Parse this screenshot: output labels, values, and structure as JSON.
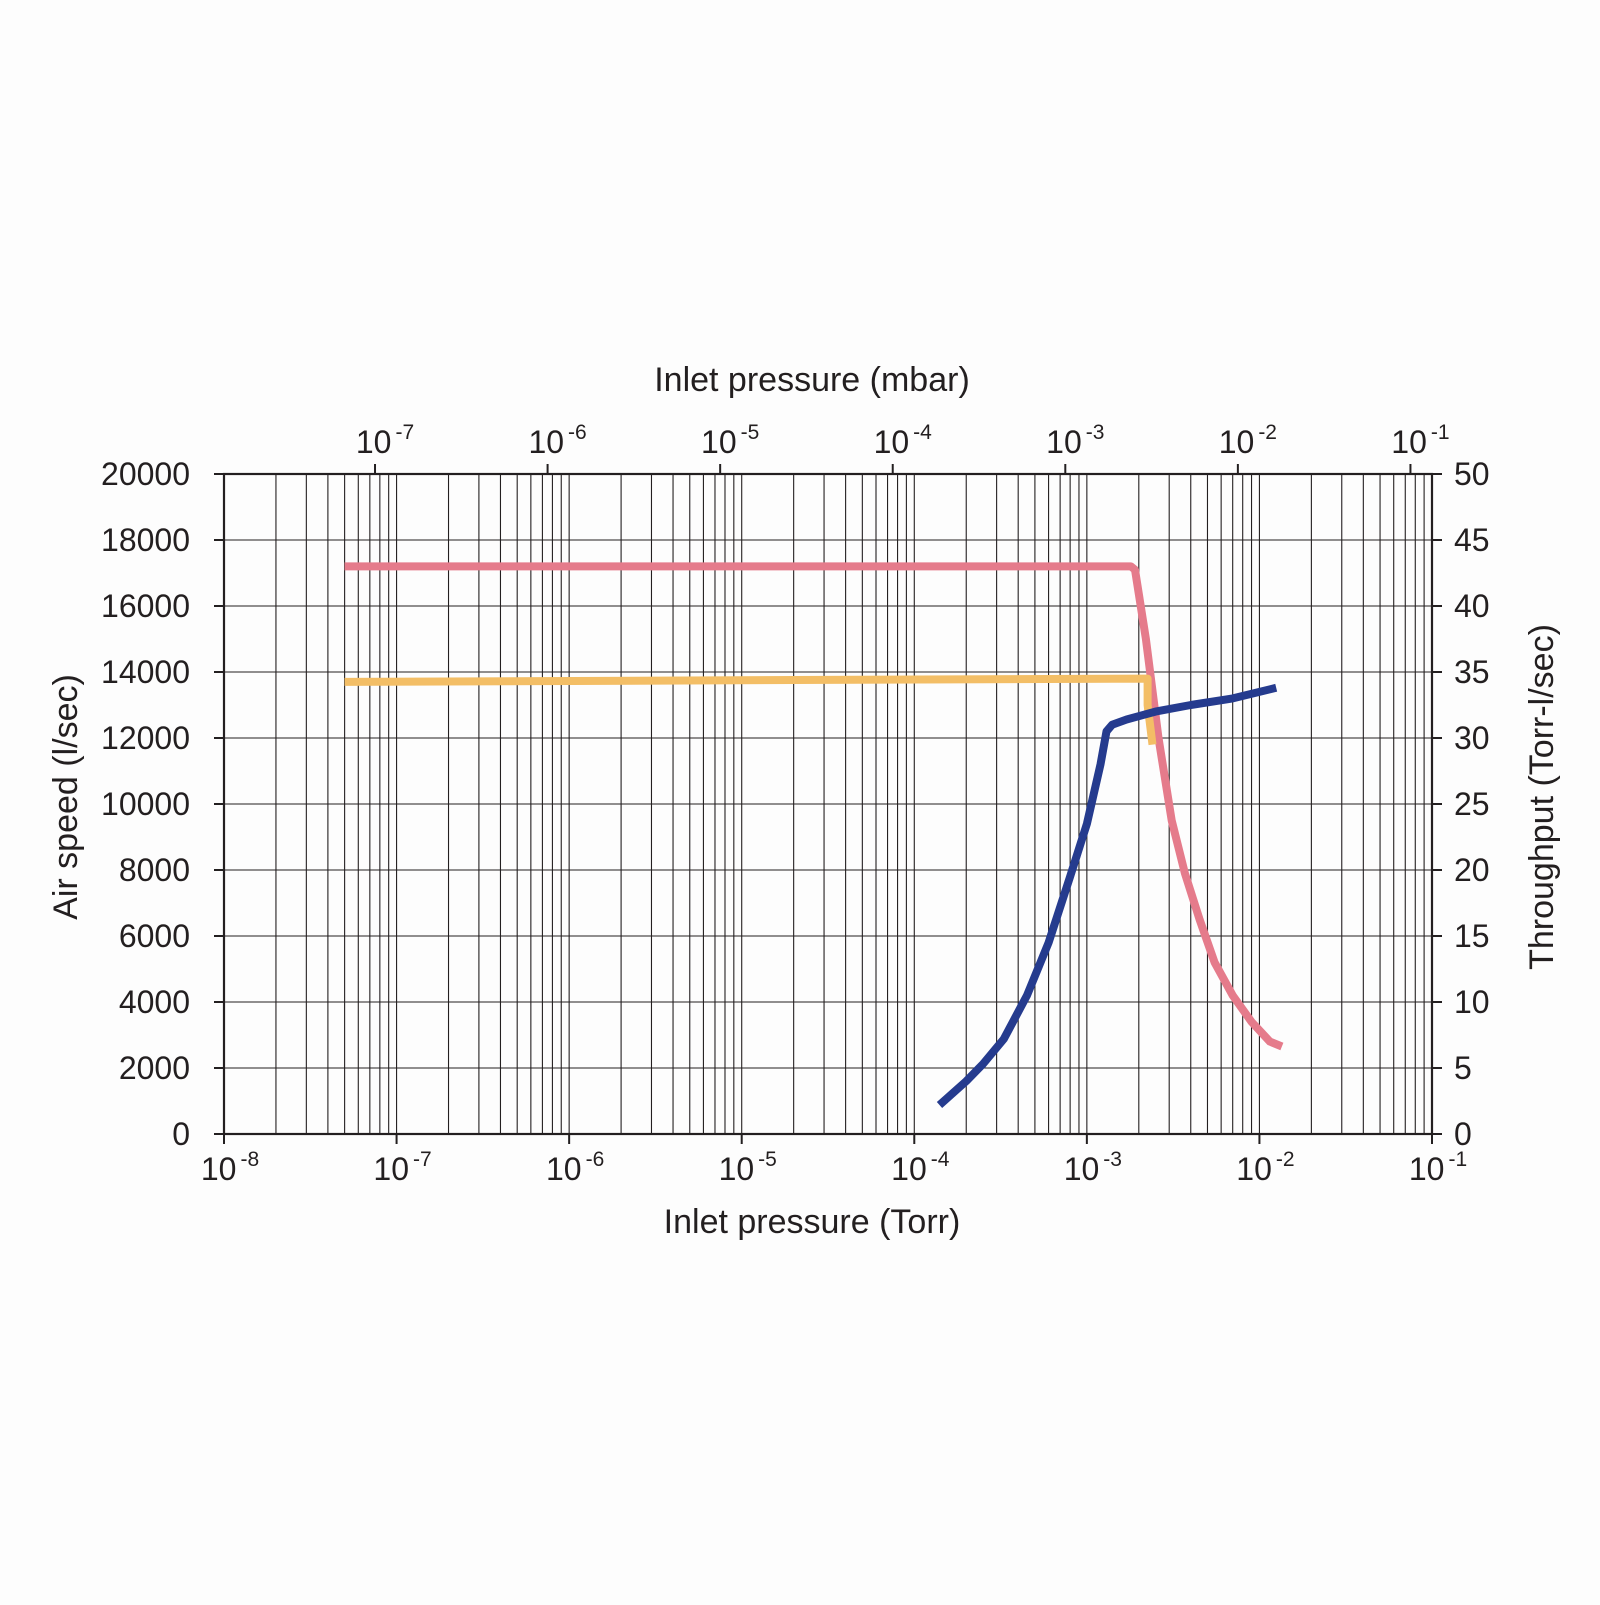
{
  "chart_data": {
    "type": "line",
    "title": "",
    "x_axis_bottom": {
      "label": "Inlet pressure (Torr)",
      "scale": "log",
      "range": [
        1e-08,
        0.1
      ],
      "ticks": [
        {
          "value": 1e-08,
          "base": "10",
          "exp": "-8"
        },
        {
          "value": 1e-07,
          "base": "10",
          "exp": "-7"
        },
        {
          "value": 1e-06,
          "base": "10",
          "exp": "-6"
        },
        {
          "value": 1e-05,
          "base": "10",
          "exp": "-5"
        },
        {
          "value": 0.0001,
          "base": "10",
          "exp": "-4"
        },
        {
          "value": 0.001,
          "base": "10",
          "exp": "-3"
        },
        {
          "value": 0.01,
          "base": "10",
          "exp": "-2"
        },
        {
          "value": 0.1,
          "base": "10",
          "exp": "-1"
        }
      ]
    },
    "x_axis_top": {
      "label": "Inlet pressure (mbar)",
      "scale": "log",
      "torr_per_mbar": 0.75006,
      "ticks": [
        {
          "value": 1e-07,
          "base": "10",
          "exp": "-7"
        },
        {
          "value": 1e-06,
          "base": "10",
          "exp": "-6"
        },
        {
          "value": 1e-05,
          "base": "10",
          "exp": "-5"
        },
        {
          "value": 0.0001,
          "base": "10",
          "exp": "-4"
        },
        {
          "value": 0.001,
          "base": "10",
          "exp": "-3"
        },
        {
          "value": 0.01,
          "base": "10",
          "exp": "-2"
        },
        {
          "value": 0.1,
          "base": "10",
          "exp": "-1"
        }
      ]
    },
    "y_axis_left": {
      "label": "Air speed (l/sec)",
      "range": [
        0,
        20000
      ],
      "ticks": [
        "0",
        "2000",
        "4000",
        "6000",
        "8000",
        "10000",
        "12000",
        "14000",
        "16000",
        "18000",
        "20000"
      ]
    },
    "y_axis_right": {
      "label": "Throughput (Torr-l/sec)",
      "range": [
        0,
        50
      ],
      "ticks": [
        "0",
        "5",
        "10",
        "15",
        "20",
        "25",
        "30",
        "35",
        "40",
        "45",
        "50"
      ]
    },
    "grid": true,
    "series": [
      {
        "axis": "left",
        "color": "#e57b8b",
        "points": [
          [
            5e-08,
            17200
          ],
          [
            0.0018,
            17200
          ],
          [
            0.0019,
            17100
          ],
          [
            0.0022,
            15000
          ],
          [
            0.0026,
            12000
          ],
          [
            0.0031,
            9500
          ],
          [
            0.0037,
            7900
          ],
          [
            0.0045,
            6500
          ],
          [
            0.0055,
            5200
          ],
          [
            0.007,
            4200
          ],
          [
            0.009,
            3400
          ],
          [
            0.0115,
            2800
          ],
          [
            0.0135,
            2650
          ]
        ]
      },
      {
        "axis": "left",
        "color": "#f3be66",
        "points": [
          [
            5e-08,
            13700
          ],
          [
            0.00225,
            13800
          ],
          [
            0.00225,
            13000
          ],
          [
            0.0024,
            11800
          ]
        ]
      },
      {
        "axis": "right",
        "color": "#253b8e",
        "points": [
          [
            0.00014,
            2.2
          ],
          [
            0.0002,
            4
          ],
          [
            0.00025,
            5.3
          ],
          [
            0.00033,
            7.2
          ],
          [
            0.00045,
            10.5
          ],
          [
            0.0006,
            14.5
          ],
          [
            0.0008,
            19.5
          ],
          [
            0.001,
            23.5
          ],
          [
            0.0012,
            28
          ],
          [
            0.0013,
            30.5
          ],
          [
            0.0014,
            31
          ],
          [
            0.0017,
            31.4
          ],
          [
            0.0025,
            32
          ],
          [
            0.004,
            32.5
          ],
          [
            0.007,
            33
          ],
          [
            0.0125,
            33.8
          ]
        ]
      }
    ]
  }
}
